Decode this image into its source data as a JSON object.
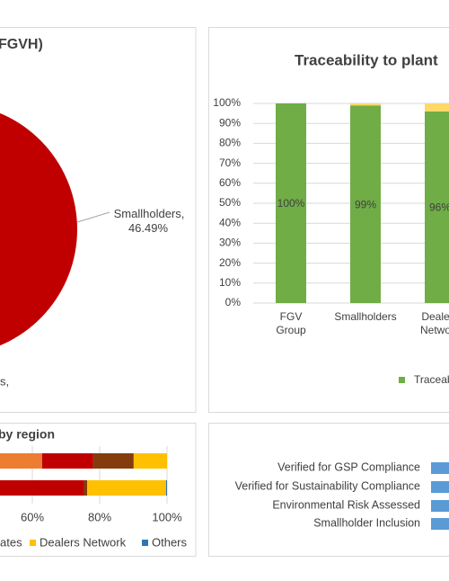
{
  "chart_data": [
    {
      "type": "pie",
      "title": "FGVH)",
      "series": [
        {
          "name": "Smallholders",
          "color": "#c00000",
          "values": [
            46.49
          ],
          "value_labels": [
            "Smallholders, 46.49%"
          ]
        }
      ],
      "annotations": [
        "s,"
      ]
    },
    {
      "type": "stacked_bar",
      "title": "Traceability to plant",
      "categories": [
        "FGV Group",
        "Smallholders",
        "Dealers Network"
      ],
      "series": [
        {
          "name": "Traceab",
          "color": "#70ad47",
          "values": [
            100,
            99,
            96
          ],
          "value_labels": [
            "100%",
            "99%",
            "96%"
          ]
        },
        {
          "color": "#ffd966",
          "values": [
            0,
            1,
            4
          ]
        }
      ],
      "ylim": [
        0,
        100
      ],
      "yticks": [
        {
          "value": 0,
          "label": "0%"
        },
        {
          "value": 10,
          "label": "10%"
        },
        {
          "value": 20,
          "label": "20%"
        },
        {
          "value": 30,
          "label": "30%"
        },
        {
          "value": 40,
          "label": "40%"
        },
        {
          "value": 50,
          "label": "50%"
        },
        {
          "value": 60,
          "label": "60%"
        },
        {
          "value": 70,
          "label": "70%"
        },
        {
          "value": 80,
          "label": "80%"
        },
        {
          "value": 90,
          "label": "90%"
        },
        {
          "value": 100,
          "label": "100%"
        }
      ],
      "grid": true
    },
    {
      "type": "stacked_hbar",
      "title": "by region",
      "series": [
        {
          "color": "#ed7d31",
          "values": [
            62.9,
            0
          ]
        },
        {
          "color": "#c00000",
          "values": [
            15.2,
            75.2
          ]
        },
        {
          "name": "ates",
          "color": "#843c0c",
          "values": [
            12,
            1.1
          ]
        },
        {
          "name": "Dealers Network",
          "color": "#ffc000",
          "values": [
            9.9,
            23.4
          ]
        },
        {
          "name": "Others",
          "color": "#2e75b6",
          "values": [
            0,
            0.3
          ]
        }
      ],
      "xlim": [
        0,
        100
      ],
      "xticks": [
        {
          "value": 60,
          "label": "60%"
        },
        {
          "value": 80,
          "label": "80%"
        },
        {
          "value": 100,
          "label": "100%"
        }
      ],
      "grid": true
    },
    {
      "type": "hbar_labels",
      "categories": [
        "Verified for GSP Compliance",
        "Verified for Sustainability Compliance",
        "Environmental Risk Assessed",
        "Smallholder Inclusion"
      ],
      "color": "#5b9bd5"
    }
  ]
}
